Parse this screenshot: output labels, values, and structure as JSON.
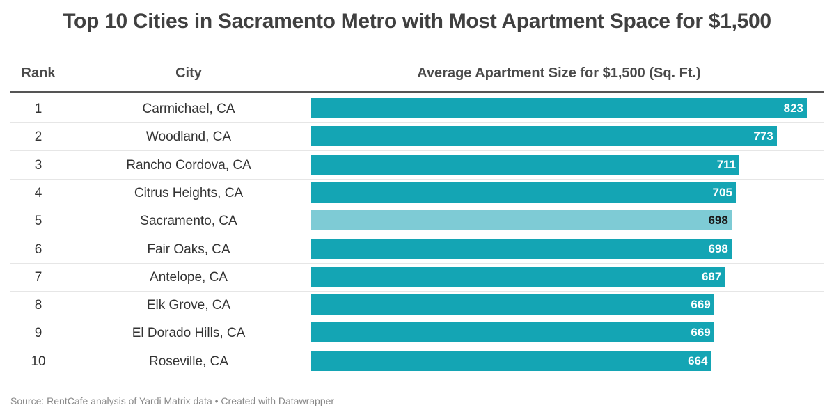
{
  "chart_data": {
    "type": "table",
    "title": "Top 10 Cities in Sacramento Metro with Most Apartment Space for $1,500",
    "columns": [
      "Rank",
      "City",
      "Average Apartment Size for $1,500 (Sq. Ft.)"
    ],
    "rows": [
      {
        "rank": "1",
        "city": "Carmichael, CA",
        "value": 823
      },
      {
        "rank": "2",
        "city": "Woodland, CA",
        "value": 773
      },
      {
        "rank": "3",
        "city": "Rancho Cordova, CA",
        "value": 711
      },
      {
        "rank": "4",
        "city": "Citrus Heights, CA",
        "value": 705
      },
      {
        "rank": "5",
        "city": "Sacramento, CA",
        "value": 698,
        "highlight": true
      },
      {
        "rank": "6",
        "city": "Fair Oaks, CA",
        "value": 698
      },
      {
        "rank": "7",
        "city": "Antelope, CA",
        "value": 687
      },
      {
        "rank": "8",
        "city": "Elk Grove, CA",
        "value": 669
      },
      {
        "rank": "9",
        "city": "El Dorado Hills, CA",
        "value": 669
      },
      {
        "rank": "10",
        "city": "Roseville, CA",
        "value": 664
      }
    ],
    "colors": {
      "bar": "#14a5b4",
      "highlight": "#7ecbd5",
      "highlight_label": "#1a1a1a"
    }
  },
  "footer": {
    "source": "Source: RentCafe analysis of Yardi Matrix data • Created with Datawrapper"
  }
}
